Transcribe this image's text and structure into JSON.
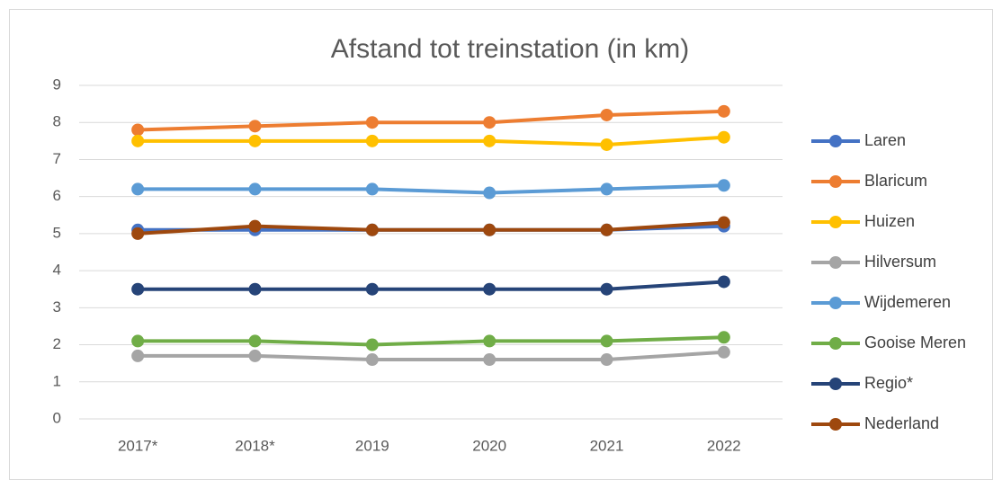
{
  "chart_data": {
    "type": "line",
    "title": "Afstand tot treinstation (in km)",
    "categories": [
      "2017*",
      "2018*",
      "2019",
      "2020",
      "2021",
      "2022"
    ],
    "series": [
      {
        "name": "Laren",
        "color": "#4472c4",
        "values": [
          5.1,
          5.1,
          5.1,
          5.1,
          5.1,
          5.2
        ]
      },
      {
        "name": "Blaricum",
        "color": "#ed7d31",
        "values": [
          7.8,
          7.9,
          8.0,
          8.0,
          8.2,
          8.3
        ]
      },
      {
        "name": "Huizen",
        "color": "#ffc000",
        "values": [
          7.5,
          7.5,
          7.5,
          7.5,
          7.4,
          7.6
        ]
      },
      {
        "name": "Hilversum",
        "color": "#a5a5a5",
        "values": [
          1.7,
          1.7,
          1.6,
          1.6,
          1.6,
          1.8
        ]
      },
      {
        "name": "Wijdemeren",
        "color": "#5b9bd5",
        "values": [
          6.2,
          6.2,
          6.2,
          6.1,
          6.2,
          6.3
        ]
      },
      {
        "name": "Gooise Meren",
        "color": "#70ad47",
        "values": [
          2.1,
          2.1,
          2.0,
          2.1,
          2.1,
          2.2
        ]
      },
      {
        "name": "Regio*",
        "color": "#264478",
        "values": [
          3.5,
          3.5,
          3.5,
          3.5,
          3.5,
          3.7
        ]
      },
      {
        "name": "Nederland",
        "color": "#9e480e",
        "values": [
          5.0,
          5.2,
          5.1,
          5.1,
          5.1,
          5.3
        ]
      }
    ],
    "ylim": [
      0,
      9
    ],
    "yticks": [
      0,
      1,
      2,
      3,
      4,
      5,
      6,
      7,
      8,
      9
    ],
    "grid": true,
    "legend": "right"
  }
}
